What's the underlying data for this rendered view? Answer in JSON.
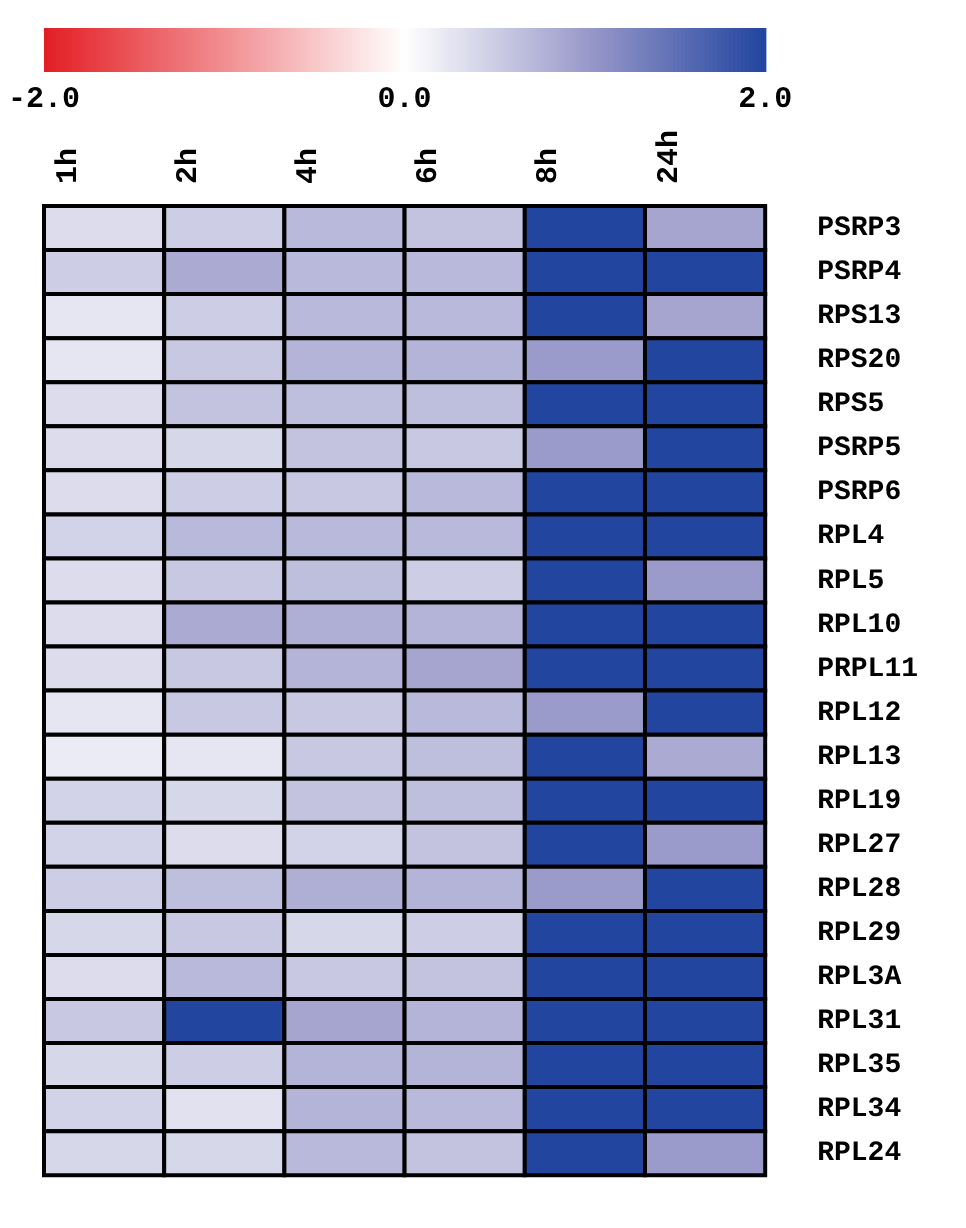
{
  "chart_data": {
    "type": "heatmap",
    "categories": [
      "1h",
      "2h",
      "4h",
      "6h",
      "8h",
      "24h"
    ],
    "y_categories": [
      "PSRP3",
      "PSRP4",
      "RPS13",
      "RPS20",
      "RPS5",
      "PSRP5",
      "PSRP6",
      "RPL4",
      "RPL5",
      "RPL10",
      "PRPL11",
      "RPL12",
      "RPL13",
      "RPL19",
      "RPL27",
      "RPL28",
      "RPL29",
      "RPL3A",
      "RPL31",
      "RPL35",
      "RPL34",
      "RPL24"
    ],
    "cells": [
      [
        0.35,
        0.5,
        0.7,
        0.6,
        2,
        0.9
      ],
      [
        0.5,
        0.85,
        0.7,
        0.7,
        2,
        2
      ],
      [
        0.25,
        0.5,
        0.7,
        0.7,
        2,
        0.9
      ],
      [
        0.25,
        0.55,
        0.75,
        0.75,
        1,
        2
      ],
      [
        0.35,
        0.6,
        0.65,
        0.65,
        2,
        2
      ],
      [
        0.35,
        0.4,
        0.6,
        0.55,
        1,
        2
      ],
      [
        0.35,
        0.5,
        0.55,
        0.7,
        2,
        2
      ],
      [
        0.45,
        0.7,
        0.7,
        0.7,
        2,
        2
      ],
      [
        0.35,
        0.55,
        0.65,
        0.5,
        2,
        1
      ],
      [
        0.35,
        0.85,
        0.8,
        0.75,
        2,
        2
      ],
      [
        0.35,
        0.55,
        0.75,
        0.9,
        2,
        2
      ],
      [
        0.25,
        0.55,
        0.55,
        0.7,
        1,
        2
      ],
      [
        0.2,
        0.25,
        0.55,
        0.65,
        2,
        0.85
      ],
      [
        0.45,
        0.4,
        0.6,
        0.65,
        2,
        2
      ],
      [
        0.45,
        0.35,
        0.45,
        0.6,
        2,
        1
      ],
      [
        0.5,
        0.65,
        0.8,
        0.75,
        1,
        2
      ],
      [
        0.4,
        0.55,
        0.4,
        0.5,
        2,
        2
      ],
      [
        0.35,
        0.7,
        0.55,
        0.6,
        2,
        2
      ],
      [
        0.55,
        2,
        0.9,
        0.75,
        2,
        2
      ],
      [
        0.4,
        0.5,
        0.75,
        0.75,
        2,
        2
      ],
      [
        0.45,
        0.3,
        0.75,
        0.7,
        2,
        2
      ],
      [
        0.4,
        0.4,
        0.7,
        0.6,
        2,
        1
      ]
    ],
    "clim": [
      -2,
      2
    ],
    "cticks": [
      {
        "value": -2,
        "label": "-2.0"
      },
      {
        "value": 0,
        "label": "0.0"
      },
      {
        "value": 2,
        "label": "2.0"
      }
    ],
    "legend": false
  }
}
